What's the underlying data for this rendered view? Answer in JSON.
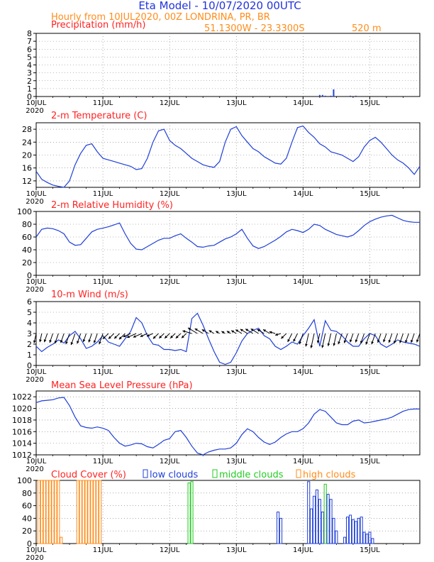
{
  "header": {
    "title": "Eta Model - 10/07/2020 00UTC",
    "subtitle": "Hourly from 10JUL2020, 00Z  LONDRINA, PR, BR",
    "coords": "51.1300W - 23.3300S",
    "elevation": "520  m",
    "title_color": "#2233dd",
    "sub_color": "#ff8c1a",
    "panel_title_color": "#ff2222"
  },
  "x_axis": {
    "day_labels": [
      "10JUL",
      "11JUL",
      "12JUL",
      "13JUL",
      "14JUL",
      "15JUL"
    ],
    "year_label": "2020",
    "hours_total": 138
  },
  "chart_data": [
    {
      "id": "precip",
      "type": "bar",
      "title": "Precipitation (mm/h)",
      "ylim": [
        0,
        8
      ],
      "yticks": [
        0,
        1,
        2,
        3,
        4,
        5,
        6,
        7,
        8
      ],
      "color": "#1f3fd8",
      "bars": [
        {
          "hour": 102,
          "value": 0.2
        },
        {
          "hour": 103,
          "value": 0.2
        },
        {
          "hour": 104,
          "value": 0.1
        },
        {
          "hour": 106,
          "value": 0.1
        },
        {
          "hour": 107,
          "value": 0.9
        },
        {
          "hour": 113,
          "value": 0.1
        },
        {
          "hour": 115,
          "value": 0.1
        }
      ]
    },
    {
      "id": "temp",
      "type": "line",
      "title": "2-m Temperature (C)",
      "ylim": [
        10,
        30
      ],
      "yticks": [
        12,
        16,
        20,
        24,
        28
      ],
      "color": "#1f3fd8",
      "x_hours": [
        0,
        2,
        4,
        6,
        8,
        10,
        12,
        14,
        16,
        18,
        20,
        22,
        24,
        26,
        28,
        30,
        32,
        34,
        36,
        38,
        40,
        42,
        44,
        46,
        48,
        50,
        52,
        54,
        56,
        58,
        60,
        62,
        64,
        66,
        68,
        70,
        72,
        74,
        76,
        78,
        80,
        82,
        84,
        86,
        88,
        90,
        92,
        94,
        96,
        98,
        100,
        102,
        104,
        106,
        108,
        110,
        112,
        114,
        116,
        118,
        120,
        122,
        124,
        126,
        128,
        130,
        132,
        134,
        136,
        138
      ],
      "values": [
        15,
        12.5,
        11.5,
        10.7,
        10.3,
        9.7,
        12,
        17,
        20.5,
        23,
        23.5,
        21,
        19,
        18.5,
        18,
        17.5,
        17,
        16.5,
        15.5,
        15.8,
        19,
        24,
        27.5,
        28,
        24.5,
        23,
        22,
        20.5,
        19,
        18,
        17,
        16.5,
        16.2,
        18,
        24,
        28,
        28.8,
        26,
        24,
        22,
        21,
        19.5,
        18.5,
        17.5,
        17.2,
        19,
        24,
        28.5,
        29,
        27,
        25.5,
        23.5,
        22.5,
        21,
        20.5,
        20,
        19,
        18,
        19.5,
        22.5,
        24.5,
        25.5,
        24,
        22,
        20,
        18.5,
        17.5,
        16,
        14,
        16.5
      ]
    },
    {
      "id": "rh",
      "type": "line",
      "title": "2-m Relative Humidity (%)",
      "ylim": [
        0,
        100
      ],
      "yticks": [
        0,
        20,
        40,
        60,
        80,
        100
      ],
      "color": "#1f3fd8",
      "x_hours": [
        0,
        2,
        4,
        6,
        8,
        10,
        12,
        14,
        16,
        18,
        20,
        22,
        24,
        26,
        28,
        30,
        32,
        34,
        36,
        38,
        40,
        42,
        44,
        46,
        48,
        50,
        52,
        54,
        56,
        58,
        60,
        62,
        64,
        66,
        68,
        70,
        72,
        74,
        76,
        78,
        80,
        82,
        84,
        86,
        88,
        90,
        92,
        94,
        96,
        98,
        100,
        102,
        104,
        106,
        108,
        110,
        112,
        114,
        116,
        118,
        120,
        122,
        124,
        126,
        128,
        130,
        132,
        134,
        136,
        138
      ],
      "values": [
        60,
        72,
        74,
        73,
        70,
        65,
        52,
        47,
        48,
        58,
        68,
        72,
        74,
        76,
        79,
        82,
        65,
        50,
        41,
        40,
        45,
        50,
        55,
        58,
        58,
        62,
        65,
        58,
        52,
        45,
        44,
        46,
        47,
        52,
        57,
        60,
        65,
        72,
        58,
        46,
        42,
        45,
        50,
        55,
        61,
        68,
        72,
        70,
        67,
        72,
        80,
        78,
        72,
        68,
        64,
        62,
        60,
        63,
        70,
        78,
        84,
        88,
        91,
        93,
        94,
        90,
        86,
        84,
        83,
        83
      ]
    },
    {
      "id": "wind",
      "type": "line",
      "title": "10-m Wind (m/s)",
      "ylim": [
        0,
        6
      ],
      "yticks": [
        0,
        1,
        2,
        3,
        4,
        5,
        6
      ],
      "color": "#1f3fd8",
      "x_hours": [
        0,
        2,
        4,
        6,
        8,
        10,
        12,
        14,
        16,
        18,
        20,
        22,
        24,
        26,
        28,
        30,
        32,
        34,
        36,
        38,
        40,
        42,
        44,
        46,
        48,
        50,
        52,
        54,
        56,
        58,
        60,
        62,
        64,
        66,
        68,
        70,
        72,
        74,
        76,
        78,
        80,
        82,
        84,
        86,
        88,
        90,
        92,
        94,
        96,
        98,
        100,
        102,
        104,
        106,
        108,
        110,
        112,
        114,
        116,
        118,
        120,
        122,
        124,
        126,
        128,
        130,
        132,
        134,
        136,
        138
      ],
      "values": [
        1.8,
        1.3,
        1.7,
        2.0,
        2.4,
        2.1,
        2.8,
        3.2,
        2.5,
        1.6,
        1.8,
        2.2,
        2.8,
        2.2,
        2.0,
        1.8,
        2.5,
        3.2,
        4.5,
        4.0,
        2.8,
        2.0,
        1.9,
        1.5,
        1.5,
        1.4,
        1.5,
        1.3,
        4.4,
        4.9,
        3.8,
        2.5,
        1.3,
        0.3,
        0.1,
        0.3,
        1.2,
        2.3,
        3.0,
        3.3,
        3.5,
        2.8,
        2.5,
        1.8,
        1.5,
        1.8,
        2.2,
        2.0,
        2.8,
        3.5,
        4.3,
        1.8,
        4.2,
        3.3,
        3.2,
        2.8,
        2.2,
        1.8,
        1.8,
        2.5,
        3.0,
        2.8,
        2.0,
        1.7,
        2.0,
        2.4,
        2.2,
        2.1,
        2.0,
        1.8
      ],
      "barb_direction_deg": [
        20,
        20,
        30,
        30,
        30,
        30,
        30,
        30,
        30,
        30,
        30,
        30,
        30,
        60,
        60,
        60,
        60,
        75,
        75,
        75,
        75,
        75,
        60,
        60,
        60,
        60,
        60,
        60,
        100,
        110,
        110,
        110,
        110,
        110,
        110,
        110,
        110,
        110,
        110,
        110,
        110,
        110,
        110,
        100,
        80,
        60,
        40,
        40,
        30,
        20,
        20,
        20,
        20,
        20,
        20,
        30,
        30,
        30,
        30,
        30,
        30,
        30,
        30,
        30,
        30,
        30,
        30,
        30,
        30,
        30
      ]
    },
    {
      "id": "mslp",
      "type": "line",
      "title": "Mean Sea Level Pressure (hPa)",
      "ylim": [
        1012,
        1023
      ],
      "yticks": [
        1012,
        1014,
        1016,
        1018,
        1020,
        1022
      ],
      "color": "#1f3fd8",
      "x_hours": [
        0,
        2,
        4,
        6,
        8,
        10,
        12,
        14,
        16,
        18,
        20,
        22,
        24,
        26,
        28,
        30,
        32,
        34,
        36,
        38,
        40,
        42,
        44,
        46,
        48,
        50,
        52,
        54,
        56,
        58,
        60,
        62,
        64,
        66,
        68,
        70,
        72,
        74,
        76,
        78,
        80,
        82,
        84,
        86,
        88,
        90,
        92,
        94,
        96,
        98,
        100,
        102,
        104,
        106,
        108,
        110,
        112,
        114,
        116,
        118,
        120,
        122,
        124,
        126,
        128,
        130,
        132,
        134,
        136,
        138
      ],
      "values": [
        1021,
        1021.3,
        1021.4,
        1021.5,
        1021.8,
        1021.9,
        1020.5,
        1018.5,
        1017.0,
        1016.7,
        1016.6,
        1016.8,
        1016.6,
        1016.2,
        1015.0,
        1014.0,
        1013.5,
        1013.7,
        1014.0,
        1013.9,
        1013.4,
        1013.2,
        1013.8,
        1014.5,
        1014.8,
        1016.0,
        1016.2,
        1015.0,
        1013.5,
        1012.3,
        1012.0,
        1012.5,
        1012.8,
        1013.0,
        1013.0,
        1013.2,
        1014.0,
        1015.5,
        1016.5,
        1016.0,
        1015.0,
        1014.2,
        1013.8,
        1014.2,
        1015.0,
        1015.6,
        1016.0,
        1016.0,
        1016.5,
        1017.5,
        1019.0,
        1019.8,
        1019.5,
        1018.5,
        1017.5,
        1017.2,
        1017.2,
        1017.8,
        1018.0,
        1017.5,
        1017.6,
        1017.8,
        1018.0,
        1018.2,
        1018.5,
        1019.0,
        1019.5,
        1019.8,
        1019.9,
        1019.9
      ]
    },
    {
      "id": "cloud",
      "type": "bar",
      "title": "Cloud Cover (%)",
      "legend": {
        "low": "low clouds",
        "middle": "middle clouds",
        "high": "high clouds"
      },
      "ylim": [
        0,
        100
      ],
      "yticks": [
        0,
        20,
        40,
        60,
        80,
        100
      ],
      "colors": {
        "low": "#1f3fd8",
        "middle": "#22cc22",
        "high": "#ff8c1a"
      },
      "bars": [
        {
          "hour": 1,
          "layer": "high",
          "value": 100
        },
        {
          "hour": 2,
          "layer": "high",
          "value": 100
        },
        {
          "hour": 3,
          "layer": "high",
          "value": 100
        },
        {
          "hour": 4,
          "layer": "high",
          "value": 100
        },
        {
          "hour": 5,
          "layer": "high",
          "value": 100
        },
        {
          "hour": 6,
          "layer": "high",
          "value": 100
        },
        {
          "hour": 7,
          "layer": "high",
          "value": 100
        },
        {
          "hour": 8,
          "layer": "high",
          "value": 100
        },
        {
          "hour": 9,
          "layer": "high",
          "value": 10
        },
        {
          "hour": 15,
          "layer": "high",
          "value": 100
        },
        {
          "hour": 16,
          "layer": "high",
          "value": 100
        },
        {
          "hour": 17,
          "layer": "high",
          "value": 100
        },
        {
          "hour": 18,
          "layer": "high",
          "value": 100
        },
        {
          "hour": 19,
          "layer": "high",
          "value": 100
        },
        {
          "hour": 20,
          "layer": "high",
          "value": 100
        },
        {
          "hour": 21,
          "layer": "high",
          "value": 100
        },
        {
          "hour": 22,
          "layer": "high",
          "value": 100
        },
        {
          "hour": 23,
          "layer": "high",
          "value": 100
        },
        {
          "hour": 55,
          "layer": "middle",
          "value": 96
        },
        {
          "hour": 56,
          "layer": "middle",
          "value": 98
        },
        {
          "hour": 87,
          "layer": "low",
          "value": 50
        },
        {
          "hour": 88,
          "layer": "low",
          "value": 40
        },
        {
          "hour": 98,
          "layer": "low",
          "value": 98
        },
        {
          "hour": 99,
          "layer": "low",
          "value": 55
        },
        {
          "hour": 100,
          "layer": "low",
          "value": 75
        },
        {
          "hour": 101,
          "layer": "low",
          "value": 85
        },
        {
          "hour": 102,
          "layer": "low",
          "value": 70
        },
        {
          "hour": 103,
          "layer": "low",
          "value": 50
        },
        {
          "hour": 104,
          "layer": "middle",
          "value": 94
        },
        {
          "hour": 105,
          "layer": "low",
          "value": 78
        },
        {
          "hour": 106,
          "layer": "low",
          "value": 70
        },
        {
          "hour": 107,
          "layer": "low",
          "value": 40
        },
        {
          "hour": 108,
          "layer": "low",
          "value": 20
        },
        {
          "hour": 111,
          "layer": "low",
          "value": 10
        },
        {
          "hour": 112,
          "layer": "low",
          "value": 42
        },
        {
          "hour": 113,
          "layer": "low",
          "value": 45
        },
        {
          "hour": 114,
          "layer": "low",
          "value": 38
        },
        {
          "hour": 115,
          "layer": "low",
          "value": 35
        },
        {
          "hour": 116,
          "layer": "low",
          "value": 40
        },
        {
          "hour": 117,
          "layer": "low",
          "value": 42
        },
        {
          "hour": 118,
          "layer": "low",
          "value": 18
        },
        {
          "hour": 119,
          "layer": "low",
          "value": 15
        },
        {
          "hour": 120,
          "layer": "low",
          "value": 18
        },
        {
          "hour": 121,
          "layer": "low",
          "value": 8
        }
      ]
    }
  ]
}
